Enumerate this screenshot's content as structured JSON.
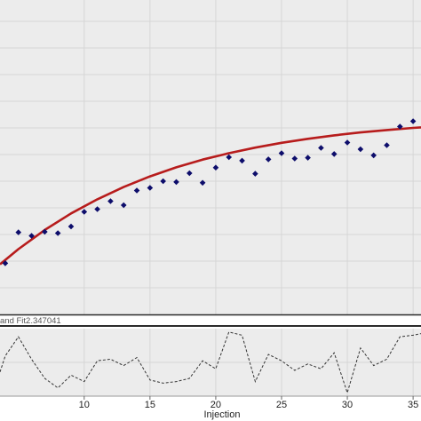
{
  "colors": {
    "panel_bg": "#ececec",
    "grid": "#d6d6d6",
    "points": "#0d0d6b",
    "fit_curve": "#b71c1c",
    "residual_line": "#333333",
    "separator": "#2a2a2a"
  },
  "legend_text": "and Fit2.347041",
  "chart_data": [
    {
      "type": "scatter",
      "title": "",
      "xlabel": "Injection",
      "ylabel": "",
      "xlim": [
        3.6,
        35.6
      ],
      "ylim": [
        0,
        11.8
      ],
      "grid": true,
      "y_ticks": [
        1,
        2,
        3,
        4,
        5,
        6,
        7,
        8,
        9,
        10,
        11
      ],
      "series": [
        {
          "marker": "diamond",
          "x": [
            4,
            5,
            6,
            7,
            8,
            9,
            10,
            11,
            12,
            13,
            14,
            15,
            16,
            17,
            18,
            19,
            20,
            21,
            22,
            23,
            24,
            25,
            26,
            27,
            28,
            29,
            30,
            31,
            32,
            33,
            34,
            35
          ],
          "y": [
            1.92,
            3.08,
            2.95,
            3.1,
            3.05,
            3.3,
            3.85,
            3.95,
            4.25,
            4.1,
            4.65,
            4.75,
            5.0,
            4.97,
            5.3,
            4.94,
            5.51,
            5.9,
            5.77,
            5.28,
            5.82,
            6.05,
            5.85,
            5.88,
            6.25,
            6.02,
            6.45,
            6.2,
            5.97,
            6.35,
            7.05,
            7.25
          ]
        },
        {
          "style": "line",
          "x": [
            3.6,
            5,
            7,
            9,
            11,
            13,
            15,
            17,
            19,
            21,
            23,
            25,
            27,
            29,
            31,
            33,
            35,
            35.6
          ],
          "y": [
            1.88,
            2.45,
            3.17,
            3.79,
            4.32,
            4.78,
            5.18,
            5.52,
            5.81,
            6.05,
            6.26,
            6.44,
            6.59,
            6.72,
            6.83,
            6.92,
            7.0,
            7.02
          ]
        }
      ]
    },
    {
      "type": "line",
      "xlabel": "Injection",
      "x_ticks": [
        10,
        15,
        20,
        25,
        30,
        35
      ],
      "x_tick_labels": [
        "10",
        "15",
        "20",
        "25",
        "30",
        "35"
      ],
      "ylim": [
        -1,
        1
      ],
      "series": [
        {
          "style": "dashed",
          "x": [
            3.6,
            4,
            5,
            6,
            7,
            8,
            9,
            10,
            11,
            12,
            13,
            14,
            15,
            16,
            17,
            18,
            19,
            20,
            21,
            22,
            23,
            24,
            25,
            26,
            27,
            28,
            29,
            30,
            31,
            32,
            33,
            34,
            35,
            35.6
          ],
          "y": [
            -0.3,
            0.2,
            0.8,
            0.1,
            -0.5,
            -0.8,
            -0.4,
            -0.6,
            0.05,
            0.1,
            -0.1,
            0.15,
            -0.55,
            -0.65,
            -0.6,
            -0.5,
            0.05,
            -0.2,
            0.95,
            0.85,
            -0.6,
            0.25,
            0.05,
            -0.25,
            -0.05,
            -0.2,
            0.3,
            -0.95,
            0.45,
            -0.1,
            0.1,
            0.8,
            0.85,
            0.9
          ]
        }
      ]
    }
  ]
}
